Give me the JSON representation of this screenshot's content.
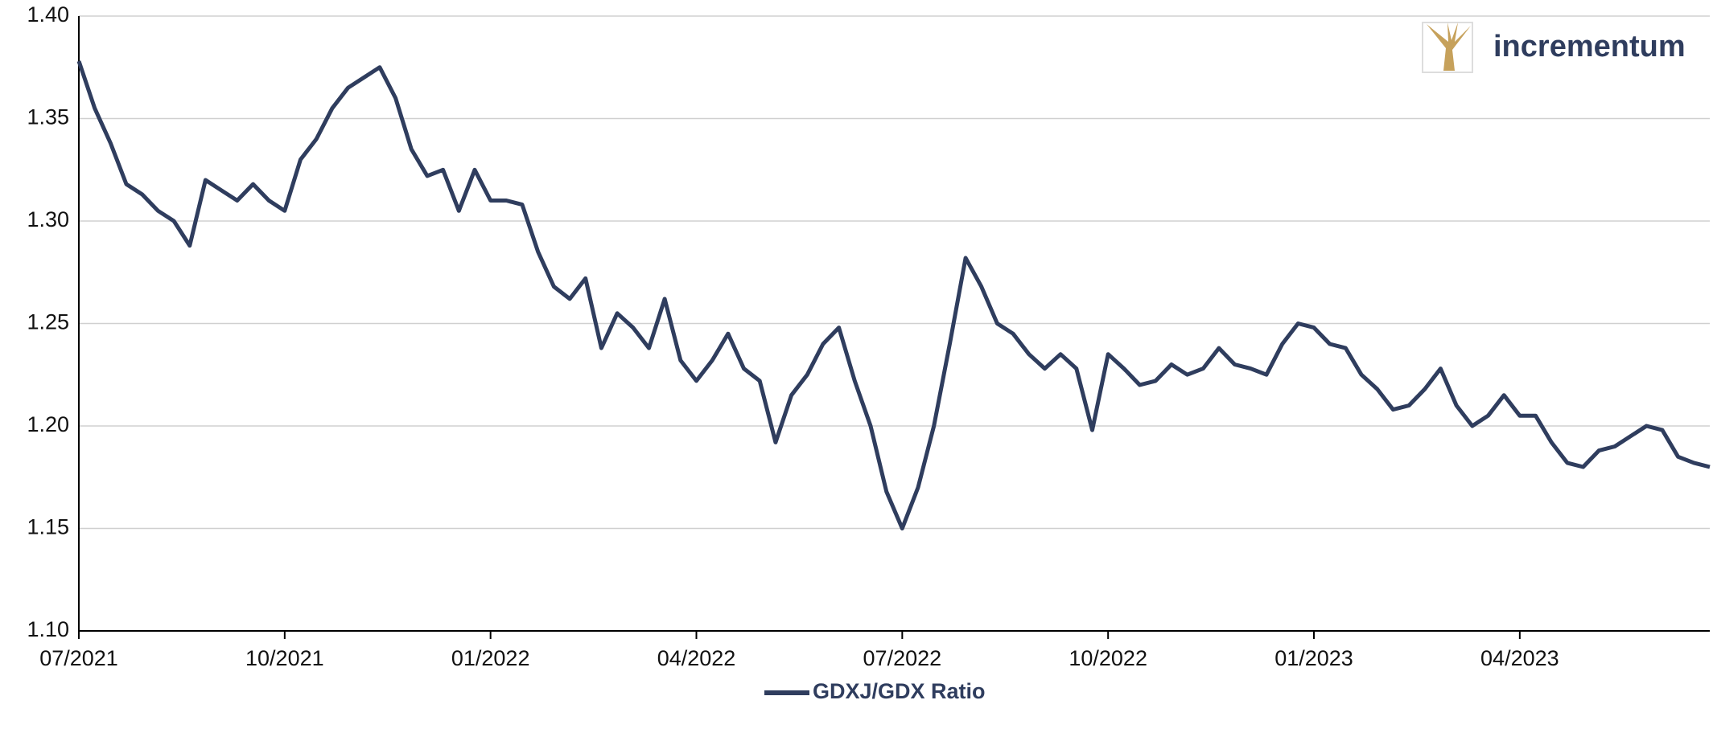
{
  "logo": "incrementum",
  "chart_data": {
    "type": "line",
    "categories": [
      "07/2021",
      null,
      null,
      null,
      null,
      null,
      null,
      null,
      null,
      null,
      null,
      null,
      null,
      "10/2021",
      null,
      null,
      null,
      null,
      null,
      null,
      null,
      null,
      null,
      null,
      null,
      null,
      "01/2022",
      null,
      null,
      null,
      null,
      null,
      null,
      null,
      null,
      null,
      null,
      null,
      null,
      "04/2022",
      null,
      null,
      null,
      null,
      null,
      null,
      null,
      null,
      null,
      null,
      null,
      null,
      "07/2022",
      null,
      null,
      null,
      null,
      null,
      null,
      null,
      null,
      null,
      null,
      null,
      null,
      "10/2022",
      null,
      null,
      null,
      null,
      null,
      null,
      null,
      null,
      null,
      null,
      null,
      null,
      "01/2023",
      null,
      null,
      null,
      null,
      null,
      null,
      null,
      null,
      null,
      null,
      null,
      null,
      "04/2023",
      null,
      null,
      null,
      null,
      null,
      null,
      null,
      null,
      null,
      null,
      null,
      null
    ],
    "series": [
      {
        "name": "GDXJ/GDX Ratio",
        "color": "#2f3d5e",
        "values": [
          1.378,
          1.355,
          1.338,
          1.318,
          1.313,
          1.305,
          1.3,
          1.288,
          1.32,
          1.315,
          1.31,
          1.318,
          1.31,
          1.305,
          1.33,
          1.34,
          1.355,
          1.365,
          1.37,
          1.375,
          1.36,
          1.335,
          1.322,
          1.325,
          1.305,
          1.325,
          1.31,
          1.31,
          1.308,
          1.285,
          1.268,
          1.262,
          1.272,
          1.238,
          1.255,
          1.248,
          1.238,
          1.262,
          1.232,
          1.222,
          1.232,
          1.245,
          1.228,
          1.222,
          1.192,
          1.215,
          1.225,
          1.24,
          1.248,
          1.222,
          1.2,
          1.168,
          1.15,
          1.17,
          1.2,
          1.24,
          1.282,
          1.268,
          1.25,
          1.245,
          1.235,
          1.228,
          1.235,
          1.228,
          1.198,
          1.235,
          1.228,
          1.22,
          1.222,
          1.23,
          1.225,
          1.228,
          1.238,
          1.23,
          1.228,
          1.225,
          1.24,
          1.25,
          1.248,
          1.24,
          1.238,
          1.225,
          1.218,
          1.208,
          1.21,
          1.218,
          1.228,
          1.21,
          1.2,
          1.205,
          1.215,
          1.205,
          1.205,
          1.192,
          1.182,
          1.18,
          1.188,
          1.19,
          1.195,
          1.2,
          1.198,
          1.185,
          1.182,
          1.18
        ]
      }
    ],
    "ylim": [
      1.1,
      1.4
    ],
    "yticks": [
      {
        "value": 1.1,
        "label": "1.10"
      },
      {
        "value": 1.15,
        "label": "1.15"
      },
      {
        "value": 1.2,
        "label": "1.20"
      },
      {
        "value": 1.25,
        "label": "1.25"
      },
      {
        "value": 1.3,
        "label": "1.30"
      },
      {
        "value": 1.35,
        "label": "1.35"
      },
      {
        "value": 1.4,
        "label": "1.40"
      }
    ],
    "grid": true,
    "legend": "bottom"
  }
}
